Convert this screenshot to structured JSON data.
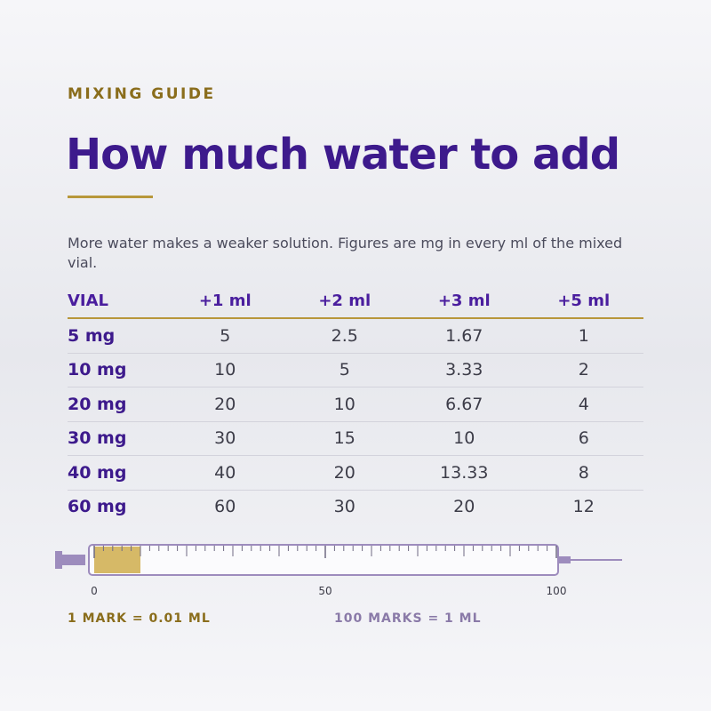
{
  "header": {
    "eyebrow": "MIXING GUIDE",
    "title": "How much water to add",
    "subtitle": "More water makes a weaker solution. Figures are mg in every ml of the mixed vial."
  },
  "table": {
    "headers": [
      "VIAL",
      "+1 ml",
      "+2 ml",
      "+3 ml",
      "+5 ml"
    ],
    "rows": [
      [
        "5 mg",
        5,
        2.5,
        1.67,
        1
      ],
      [
        "10 mg",
        10,
        5,
        3.33,
        2
      ],
      [
        "20 mg",
        20,
        10,
        6.67,
        4
      ],
      [
        "30 mg",
        30,
        15,
        10,
        6
      ],
      [
        "40 mg",
        40,
        20,
        13.33,
        8
      ],
      [
        "60 mg",
        60,
        30,
        20,
        12
      ]
    ]
  },
  "syringe": {
    "min": 0,
    "max": 100,
    "ticks": [
      0,
      50,
      100
    ],
    "fill": 10
  },
  "footer": {
    "left": "1 MARK = 0.01 ML",
    "right": "100 MARKS = 1 ML"
  }
}
